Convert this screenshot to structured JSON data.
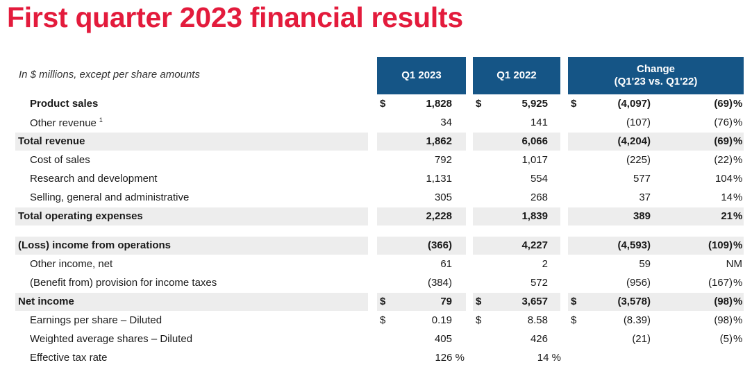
{
  "title": "First quarter 2023 financial results",
  "subtitle": "In $ millions, except per share amounts",
  "columns": {
    "q1_2023": "Q1 2023",
    "q1_2022": "Q1 2022",
    "change_line1": "Change",
    "change_line2": "(Q1'23 vs. Q1'22)"
  },
  "rows": [
    {
      "label": "Product sales",
      "bold": true,
      "shaded": false,
      "indent": true,
      "d1": "$",
      "v1": "1,828",
      "d2": "$",
      "v2": "5,925",
      "d3": "$",
      "v3": "(4,097)",
      "pct": "(69)",
      "pu": "%"
    },
    {
      "label": "Other revenue",
      "sup": "1",
      "bold": false,
      "shaded": false,
      "indent": true,
      "d1": "",
      "v1": "34",
      "d2": "",
      "v2": "141",
      "d3": "",
      "v3": "(107)",
      "pct": "(76)",
      "pu": "%"
    },
    {
      "label": "Total revenue",
      "bold": true,
      "shaded": true,
      "indent": false,
      "d1": "",
      "v1": "1,862",
      "d2": "",
      "v2": "6,066",
      "d3": "",
      "v3": "(4,204)",
      "pct": "(69)",
      "pu": "%"
    },
    {
      "label": "Cost of sales",
      "bold": false,
      "shaded": false,
      "indent": true,
      "d1": "",
      "v1": "792",
      "d2": "",
      "v2": "1,017",
      "d3": "",
      "v3": "(225)",
      "pct": "(22)",
      "pu": "%"
    },
    {
      "label": "Research and development",
      "bold": false,
      "shaded": false,
      "indent": true,
      "d1": "",
      "v1": "1,131",
      "d2": "",
      "v2": "554",
      "d3": "",
      "v3": "577",
      "pct": "104",
      "pu": "%"
    },
    {
      "label": "Selling, general and administrative",
      "bold": false,
      "shaded": false,
      "indent": true,
      "d1": "",
      "v1": "305",
      "d2": "",
      "v2": "268",
      "d3": "",
      "v3": "37",
      "pct": "14",
      "pu": "%"
    },
    {
      "label": "Total operating expenses",
      "bold": true,
      "shaded": true,
      "indent": false,
      "d1": "",
      "v1": "2,228",
      "d2": "",
      "v2": "1,839",
      "d3": "",
      "v3": "389",
      "pct": "21",
      "pu": "%"
    },
    {
      "label": "(Loss) income from operations",
      "bold": true,
      "shaded": true,
      "indent": false,
      "d1": "",
      "v1": "(366)",
      "d2": "",
      "v2": "4,227",
      "d3": "",
      "v3": "(4,593)",
      "pct": "(109)",
      "pu": "%"
    },
    {
      "label": "Other income, net",
      "bold": false,
      "shaded": false,
      "indent": true,
      "d1": "",
      "v1": "61",
      "d2": "",
      "v2": "2",
      "d3": "",
      "v3": "59",
      "pct": "NM",
      "pu": ""
    },
    {
      "label": "(Benefit from) provision for income taxes",
      "bold": false,
      "shaded": false,
      "indent": true,
      "d1": "",
      "v1": "(384)",
      "d2": "",
      "v2": "572",
      "d3": "",
      "v3": "(956)",
      "pct": "(167)",
      "pu": "%"
    },
    {
      "label": "Net income",
      "bold": true,
      "shaded": true,
      "indent": false,
      "d1": "$",
      "v1": "79",
      "d2": "$",
      "v2": "3,657",
      "d3": "$",
      "v3": "(3,578)",
      "pct": "(98)",
      "pu": "%"
    },
    {
      "label": "Earnings per share – Diluted",
      "bold": false,
      "shaded": false,
      "indent": true,
      "d1": "$",
      "v1": "0.19",
      "d2": "$",
      "v2": "8.58",
      "d3": "$",
      "v3": "(8.39)",
      "pct": "(98)",
      "pu": "%"
    },
    {
      "label": "Weighted average shares – Diluted",
      "bold": false,
      "shaded": false,
      "indent": true,
      "d1": "",
      "v1": "405",
      "d2": "",
      "v2": "426",
      "d3": "",
      "v3": "(21)",
      "pct": "(5)",
      "pu": "%"
    },
    {
      "label": "Effective tax rate",
      "bold": false,
      "shaded": false,
      "indent": true,
      "d1": "",
      "v1": "126 %",
      "d2": "",
      "v2": "14 %",
      "d3": "",
      "v3": "",
      "pct": "",
      "pu": ""
    }
  ]
}
